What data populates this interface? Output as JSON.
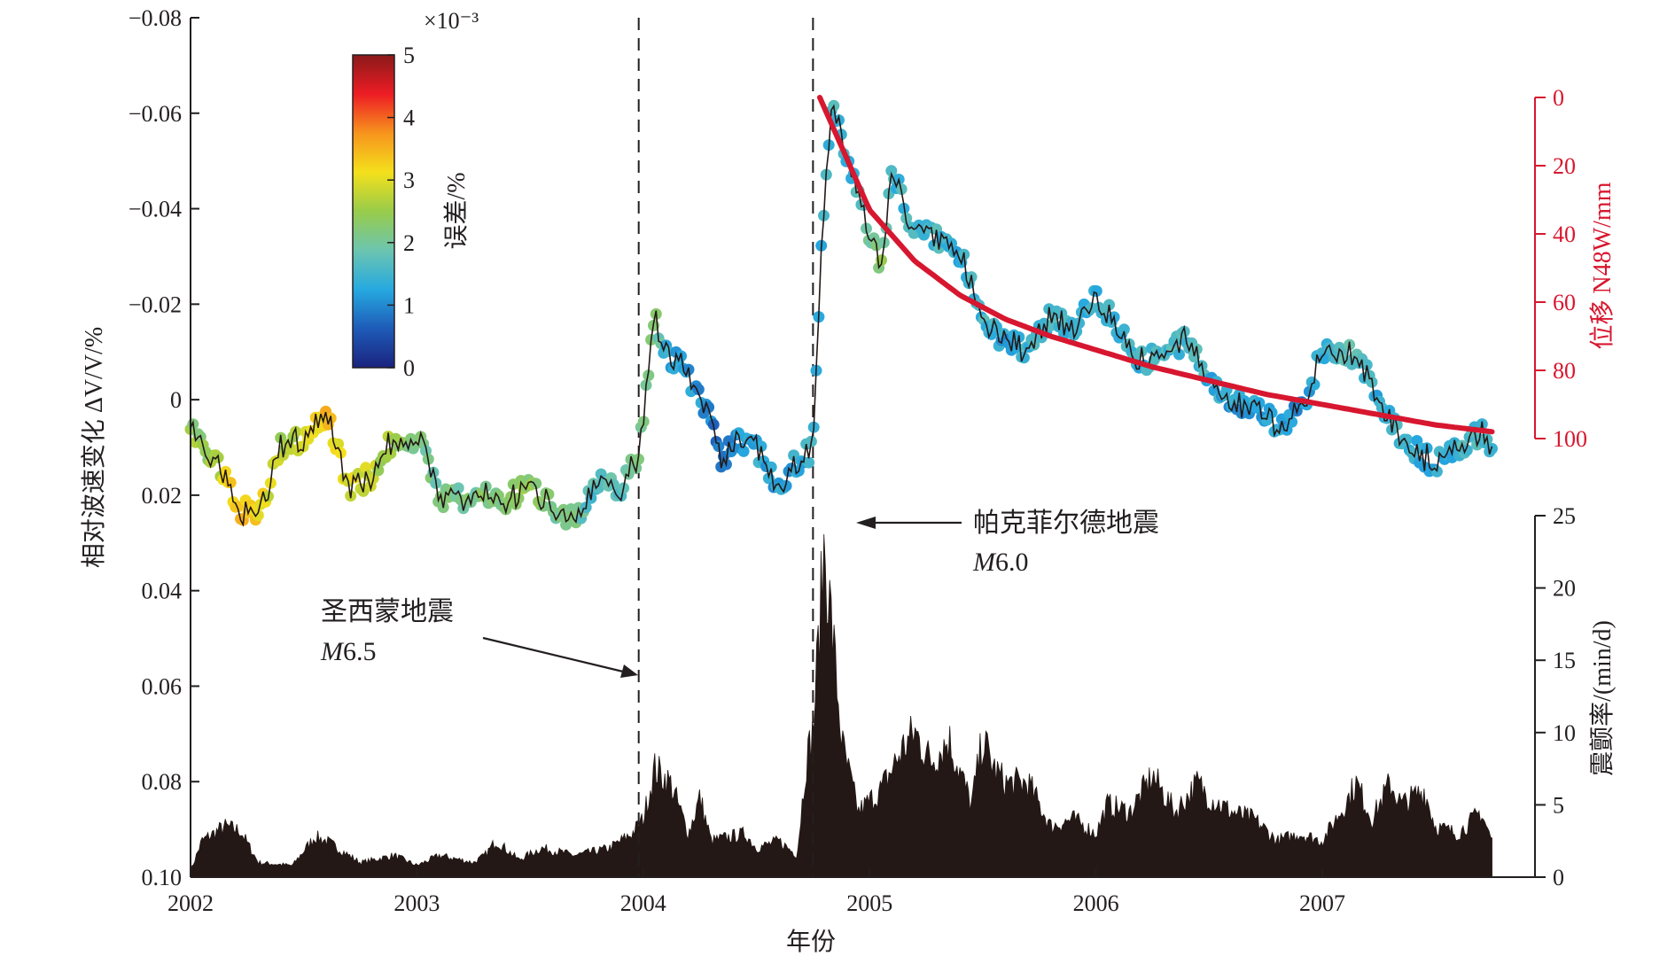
{
  "chart_data": {
    "type": "line",
    "xlabel": "年份",
    "x_ticks": [
      "2002",
      "2003",
      "2004",
      "2005",
      "2006",
      "2007"
    ],
    "x_range": [
      2002.0,
      2007.75
    ],
    "left_axis": {
      "label": "相对波速变化 ΔV/V/%",
      "range": [
        -0.08,
        0.1
      ],
      "inverted": true,
      "ticks": [
        "−0.08",
        "−0.06",
        "−0.04",
        "−0.02",
        "0",
        "0.02",
        "0.04",
        "0.06",
        "0.08",
        "0.10"
      ]
    },
    "right_axis_top": {
      "label": "位移 N48W/mm",
      "range": [
        0,
        100
      ],
      "ticks": [
        "0",
        "20",
        "40",
        "60",
        "80",
        "100"
      ],
      "color": "#d7172f"
    },
    "right_axis_bottom": {
      "label": "震颤率/(min/d)",
      "range": [
        0,
        25
      ],
      "ticks": [
        "0",
        "5",
        "10",
        "15",
        "20",
        "25"
      ]
    },
    "colorbar": {
      "label": "误差/%",
      "exponent": "×10⁻³",
      "range": [
        0,
        5
      ],
      "ticks": [
        "0",
        "1",
        "2",
        "3",
        "4",
        "5"
      ],
      "colors": [
        "#1a237e",
        "#1e5bb8",
        "#26a9e0",
        "#6cc5b0",
        "#98cc4a",
        "#f4e01c",
        "#f7941d",
        "#ed1c24",
        "#8b1a1a"
      ]
    },
    "series": [
      {
        "name": "dv_v",
        "x": [
          2002.0,
          2002.1,
          2002.2,
          2002.3,
          2002.4,
          2002.5,
          2002.6,
          2002.7,
          2002.8,
          2002.9,
          2003.0,
          2003.1,
          2003.2,
          2003.3,
          2003.4,
          2003.5,
          2003.6,
          2003.7,
          2003.8,
          2003.9,
          2003.98,
          2004.05,
          2004.1,
          2004.2,
          2004.3,
          2004.35,
          2004.4,
          2004.5,
          2004.6,
          2004.7,
          2004.75,
          2004.78,
          2004.83,
          2004.9,
          2005.0,
          2005.05,
          2005.1,
          2005.2,
          2005.3,
          2005.4,
          2005.5,
          2005.6,
          2005.7,
          2005.8,
          2005.9,
          2006.0,
          2006.1,
          2006.2,
          2006.3,
          2006.4,
          2006.5,
          2006.6,
          2006.7,
          2006.8,
          2006.9,
          2007.0,
          2007.1,
          2007.2,
          2007.3,
          2007.4,
          2007.5,
          2007.6,
          2007.7,
          2007.75
        ],
        "y": [
          0.007,
          0.012,
          0.022,
          0.025,
          0.01,
          0.008,
          0.003,
          0.018,
          0.016,
          0.008,
          0.008,
          0.02,
          0.021,
          0.02,
          0.021,
          0.018,
          0.022,
          0.025,
          0.018,
          0.018,
          0.012,
          -0.018,
          -0.01,
          -0.005,
          0.003,
          0.015,
          0.008,
          0.01,
          0.018,
          0.012,
          0.01,
          -0.025,
          -0.062,
          -0.05,
          -0.035,
          -0.028,
          -0.048,
          -0.035,
          -0.034,
          -0.03,
          -0.018,
          -0.012,
          -0.01,
          -0.018,
          -0.015,
          -0.022,
          -0.015,
          -0.008,
          -0.01,
          -0.012,
          -0.005,
          0.0,
          0.002,
          0.005,
          0.003,
          -0.01,
          -0.01,
          -0.006,
          0.005,
          0.01,
          0.014,
          0.01,
          0.007,
          0.01
        ],
        "error_x1e3": [
          2.4,
          2.5,
          3.4,
          3.2,
          2.6,
          2.8,
          3.4,
          3.0,
          2.8,
          2.4,
          2.2,
          2.0,
          2.0,
          2.2,
          2.3,
          2.4,
          2.1,
          2.0,
          1.6,
          1.8,
          2.0,
          2.2,
          1.4,
          1.2,
          1.0,
          0.6,
          1.2,
          1.3,
          1.2,
          1.3,
          1.4,
          1.4,
          1.6,
          1.4,
          2.0,
          2.4,
          1.5,
          1.5,
          1.5,
          1.4,
          1.5,
          1.2,
          1.5,
          1.5,
          1.4,
          1.4,
          1.5,
          1.4,
          1.5,
          1.6,
          1.4,
          1.2,
          1.2,
          1.3,
          1.0,
          1.5,
          1.8,
          1.4,
          1.4,
          1.4,
          1.3,
          1.5,
          1.6,
          1.5
        ]
      },
      {
        "name": "displacement",
        "x": [
          2004.78,
          2004.9,
          2005.0,
          2005.2,
          2005.4,
          2005.6,
          2005.8,
          2006.0,
          2006.25,
          2006.5,
          2006.75,
          2007.0,
          2007.25,
          2007.5,
          2007.75
        ],
        "y": [
          0,
          18,
          33,
          48,
          58,
          65,
          70,
          74,
          79,
          83,
          87,
          90,
          93,
          96,
          98
        ]
      },
      {
        "name": "tremor_rate",
        "x": [
          2002.0,
          2002.05,
          2002.15,
          2002.22,
          2002.3,
          2002.45,
          2002.55,
          2002.6,
          2002.75,
          2002.9,
          2003.0,
          2003.1,
          2003.25,
          2003.3,
          2003.35,
          2003.45,
          2003.55,
          2003.7,
          2003.85,
          2003.95,
          2004.0,
          2004.05,
          2004.12,
          2004.2,
          2004.25,
          2004.3,
          2004.45,
          2004.5,
          2004.6,
          2004.68,
          2004.72,
          2004.75,
          2004.77,
          2004.8,
          2004.84,
          2004.88,
          2004.95,
          2005.05,
          2005.15,
          2005.2,
          2005.27,
          2005.35,
          2005.45,
          2005.5,
          2005.55,
          2005.6,
          2005.7,
          2005.8,
          2005.9,
          2006.0,
          2006.05,
          2006.15,
          2006.25,
          2006.35,
          2006.45,
          2006.5,
          2006.6,
          2006.7,
          2006.8,
          2006.9,
          2007.0,
          2007.1,
          2007.15,
          2007.22,
          2007.3,
          2007.35,
          2007.45,
          2007.5,
          2007.6,
          2007.7,
          2007.75
        ],
        "y": [
          0.4,
          2.5,
          3.5,
          3.2,
          1.0,
          0.8,
          2.8,
          2.5,
          1.0,
          1.5,
          0.8,
          1.5,
          1.0,
          1.5,
          2.5,
          1.2,
          2.0,
          1.5,
          2.0,
          3.0,
          4.0,
          7.5,
          6.5,
          3.0,
          5.5,
          2.5,
          3.0,
          2.0,
          2.5,
          1.5,
          8.0,
          10.0,
          15.0,
          23.0,
          16.0,
          9.0,
          4.5,
          6.0,
          9.0,
          10.0,
          8.0,
          9.5,
          5.0,
          9.5,
          7.5,
          6.5,
          6.5,
          3.5,
          4.0,
          3.0,
          5.0,
          4.5,
          7.0,
          4.5,
          6.5,
          5.5,
          4.5,
          4.0,
          2.5,
          3.0,
          2.5,
          5.0,
          6.5,
          4.0,
          6.5,
          5.0,
          6.0,
          3.5,
          3.0,
          4.5,
          2.5
        ]
      }
    ],
    "vlines": [
      2003.98,
      2004.75
    ],
    "annotations": [
      {
        "line1": "圣西蒙地震",
        "line2_italic": "M",
        "line2": "6.5"
      },
      {
        "line1": "帕克菲尔德地震",
        "line2_italic": "M",
        "line2": "6.0"
      }
    ]
  }
}
